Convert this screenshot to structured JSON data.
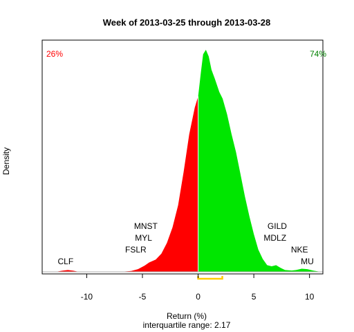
{
  "chart_data": {
    "type": "area",
    "title": "Week of 2013-03-25 through 2013-03-28",
    "xlabel": "Return (%)",
    "ylabel": "Density",
    "subtitle": "interquartile range: 2.17",
    "xlim": [
      -14,
      11.2
    ],
    "ylim": [
      0,
      1
    ],
    "x_ticks": [
      -10,
      -5,
      0,
      5,
      10
    ],
    "x_tick_labels": [
      "-10",
      "-5",
      "0",
      "5",
      "10"
    ],
    "grid": false,
    "legend": "none",
    "split_at": 0,
    "colors": {
      "negative": "#ff0000",
      "positive": "#00e600",
      "iqr": "#ffcc00",
      "pct_negative": "#ff0000",
      "pct_positive": "#008000"
    },
    "pct_negative": "26%",
    "pct_positive": "74%",
    "interquartile": [
      0,
      2.17
    ],
    "density_points": [
      [
        -13.9,
        0
      ],
      [
        -12.8,
        0
      ],
      [
        -12.2,
        0.005
      ],
      [
        -11.7,
        0.008
      ],
      [
        -11.2,
        0.005
      ],
      [
        -10.7,
        0
      ],
      [
        -7.0,
        0
      ],
      [
        -6.0,
        0.004
      ],
      [
        -5.4,
        0.012
      ],
      [
        -4.8,
        0.028
      ],
      [
        -4.4,
        0.042
      ],
      [
        -3.8,
        0.055
      ],
      [
        -3.3,
        0.082
      ],
      [
        -2.8,
        0.13
      ],
      [
        -2.3,
        0.2
      ],
      [
        -1.8,
        0.3
      ],
      [
        -1.3,
        0.45
      ],
      [
        -0.8,
        0.62
      ],
      [
        -0.3,
        0.74
      ],
      [
        0,
        0.79
      ],
      [
        0.25,
        0.9
      ],
      [
        0.45,
        0.98
      ],
      [
        0.7,
        1.0
      ],
      [
        0.95,
        0.97
      ],
      [
        1.2,
        0.91
      ],
      [
        1.5,
        0.87
      ],
      [
        1.9,
        0.81
      ],
      [
        2.2,
        0.78
      ],
      [
        2.6,
        0.71
      ],
      [
        3.0,
        0.62
      ],
      [
        3.4,
        0.54
      ],
      [
        3.8,
        0.44
      ],
      [
        4.2,
        0.34
      ],
      [
        4.6,
        0.25
      ],
      [
        5.0,
        0.17
      ],
      [
        5.4,
        0.1
      ],
      [
        5.8,
        0.058
      ],
      [
        6.2,
        0.03
      ],
      [
        6.6,
        0.025
      ],
      [
        7.0,
        0.03
      ],
      [
        7.4,
        0.018
      ],
      [
        7.8,
        0.008
      ],
      [
        8.4,
        0.006
      ],
      [
        8.8,
        0.008
      ],
      [
        9.3,
        0.014
      ],
      [
        9.8,
        0.012
      ],
      [
        10.3,
        0.006
      ],
      [
        11.0,
        0
      ]
    ],
    "annotations": [
      {
        "label": "CLF",
        "x": -11.9,
        "level": 0
      },
      {
        "label": "FSLR",
        "x": -5.6,
        "level": 1
      },
      {
        "label": "MYL",
        "x": -4.9,
        "level": 2
      },
      {
        "label": "MNST",
        "x": -4.7,
        "level": 3
      },
      {
        "label": "MU",
        "x": 9.8,
        "level": 0
      },
      {
        "label": "NKE",
        "x": 9.1,
        "level": 1
      },
      {
        "label": "MDLZ",
        "x": 6.9,
        "level": 2
      },
      {
        "label": "GILD",
        "x": 7.1,
        "level": 3
      }
    ]
  }
}
